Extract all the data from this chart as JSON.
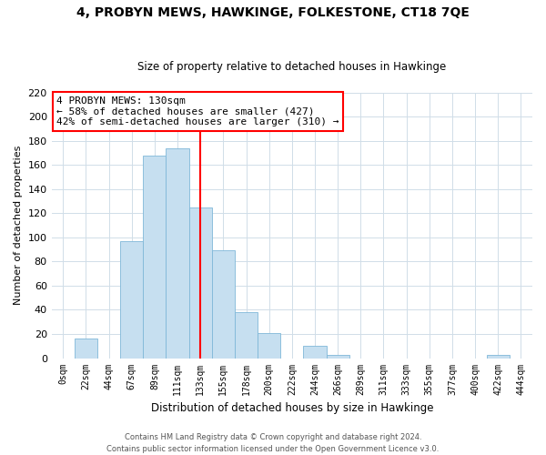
{
  "title": "4, PROBYN MEWS, HAWKINGE, FOLKESTONE, CT18 7QE",
  "subtitle": "Size of property relative to detached houses in Hawkinge",
  "xlabel": "Distribution of detached houses by size in Hawkinge",
  "ylabel": "Number of detached properties",
  "bar_labels": [
    "0sqm",
    "22sqm",
    "44sqm",
    "67sqm",
    "89sqm",
    "111sqm",
    "133sqm",
    "155sqm",
    "178sqm",
    "200sqm",
    "222sqm",
    "244sqm",
    "266sqm",
    "289sqm",
    "311sqm",
    "333sqm",
    "355sqm",
    "377sqm",
    "400sqm",
    "422sqm",
    "444sqm"
  ],
  "bar_heights": [
    0,
    16,
    0,
    97,
    168,
    174,
    125,
    89,
    38,
    21,
    0,
    10,
    3,
    0,
    0,
    0,
    0,
    0,
    0,
    3,
    0
  ],
  "bar_color": "#c6dff0",
  "bar_edge_color": "#7fb8d8",
  "vline_x_index": 6,
  "vline_color": "red",
  "annotation_line1": "4 PROBYN MEWS: 130sqm",
  "annotation_line2": "← 58% of detached houses are smaller (427)",
  "annotation_line3": "42% of semi-detached houses are larger (310) →",
  "annotation_box_color": "white",
  "annotation_box_edge_color": "red",
  "ylim": [
    0,
    220
  ],
  "yticks": [
    0,
    20,
    40,
    60,
    80,
    100,
    120,
    140,
    160,
    180,
    200,
    220
  ],
  "footer_line1": "Contains HM Land Registry data © Crown copyright and database right 2024.",
  "footer_line2": "Contains public sector information licensed under the Open Government Licence v3.0."
}
